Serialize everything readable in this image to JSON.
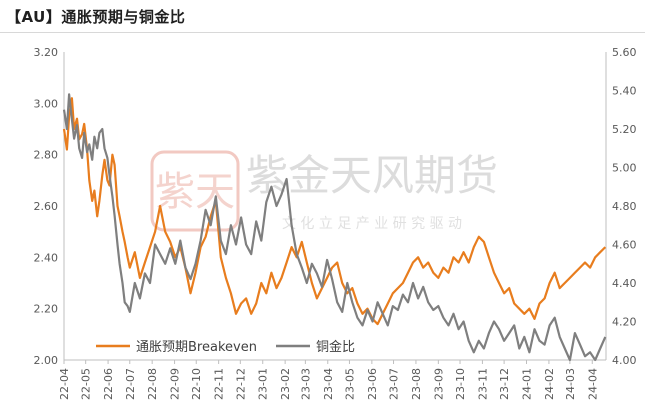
{
  "header": {
    "title": "【AU】通胀预期与铜金比"
  },
  "watermark": {
    "brand_text": "紫金天风期货",
    "slogan_text": "文 化 立 足   产 业   研 究 驱 动",
    "logo_glyphs": "紫天"
  },
  "chart_data": {
    "type": "line",
    "title": "【AU】通胀预期与铜金比",
    "grid": false,
    "legend_position": "bottom-left",
    "x_type": "date",
    "xlim": [
      "2022-04-01",
      "2024-04-20"
    ],
    "x_ticks": [
      "22-04",
      "22-05",
      "22-06",
      "22-07",
      "22-08",
      "22-09",
      "22-10",
      "22-11",
      "22-12",
      "23-01",
      "23-02",
      "23-03",
      "23-04",
      "23-05",
      "23-06",
      "23-07",
      "23-08",
      "23-09",
      "23-10",
      "23-11",
      "23-12",
      "24-01",
      "24-02",
      "24-03",
      "24-04"
    ],
    "y_left": {
      "ylim": [
        2.0,
        3.2
      ],
      "ticks": [
        "2.00",
        "2.20",
        "2.40",
        "2.60",
        "2.80",
        "3.00",
        "3.20"
      ]
    },
    "y_right": {
      "ylim": [
        4.0,
        5.6
      ],
      "ticks": [
        "4.00",
        "4.20",
        "4.40",
        "4.60",
        "4.80",
        "5.00",
        "5.20",
        "5.40",
        "5.60"
      ]
    },
    "series": [
      {
        "name": "通胀预期Breakeven",
        "axis": "left",
        "color": "#e87d1e",
        "x": [
          "2022-04-01",
          "2022-04-05",
          "2022-04-08",
          "2022-04-12",
          "2022-04-15",
          "2022-04-19",
          "2022-04-22",
          "2022-04-26",
          "2022-04-29",
          "2022-05-03",
          "2022-05-06",
          "2022-05-10",
          "2022-05-13",
          "2022-05-17",
          "2022-05-20",
          "2022-05-24",
          "2022-05-27",
          "2022-05-31",
          "2022-06-03",
          "2022-06-07",
          "2022-06-10",
          "2022-06-14",
          "2022-06-17",
          "2022-06-21",
          "2022-06-24",
          "2022-06-28",
          "2022-07-01",
          "2022-07-08",
          "2022-07-15",
          "2022-07-22",
          "2022-07-29",
          "2022-08-05",
          "2022-08-12",
          "2022-08-19",
          "2022-08-26",
          "2022-09-02",
          "2022-09-09",
          "2022-09-16",
          "2022-09-23",
          "2022-09-30",
          "2022-10-07",
          "2022-10-14",
          "2022-10-21",
          "2022-10-28",
          "2022-11-04",
          "2022-11-11",
          "2022-11-18",
          "2022-11-25",
          "2022-12-02",
          "2022-12-09",
          "2022-12-16",
          "2022-12-23",
          "2022-12-30",
          "2023-01-06",
          "2023-01-13",
          "2023-01-20",
          "2023-01-27",
          "2023-02-03",
          "2023-02-10",
          "2023-02-17",
          "2023-02-24",
          "2023-03-03",
          "2023-03-10",
          "2023-03-17",
          "2023-03-24",
          "2023-03-31",
          "2023-04-07",
          "2023-04-14",
          "2023-04-21",
          "2023-04-28",
          "2023-05-05",
          "2023-05-12",
          "2023-05-19",
          "2023-05-26",
          "2023-06-02",
          "2023-06-09",
          "2023-06-16",
          "2023-06-23",
          "2023-06-30",
          "2023-07-07",
          "2023-07-14",
          "2023-07-21",
          "2023-07-28",
          "2023-08-04",
          "2023-08-11",
          "2023-08-18",
          "2023-08-25",
          "2023-09-01",
          "2023-09-08",
          "2023-09-15",
          "2023-09-22",
          "2023-09-29",
          "2023-10-06",
          "2023-10-13",
          "2023-10-20",
          "2023-10-27",
          "2023-11-03",
          "2023-11-10",
          "2023-11-17",
          "2023-11-24",
          "2023-12-01",
          "2023-12-08",
          "2023-12-15",
          "2023-12-22",
          "2023-12-29",
          "2024-01-05",
          "2024-01-12",
          "2024-01-19",
          "2024-01-26",
          "2024-02-02",
          "2024-02-09",
          "2024-02-16",
          "2024-02-23",
          "2024-03-01",
          "2024-03-08",
          "2024-03-15",
          "2024-03-22",
          "2024-03-29",
          "2024-04-05",
          "2024-04-12",
          "2024-04-19"
        ],
        "values": [
          2.9,
          2.82,
          2.95,
          3.02,
          2.9,
          2.94,
          2.86,
          2.88,
          2.92,
          2.82,
          2.7,
          2.62,
          2.66,
          2.56,
          2.62,
          2.72,
          2.78,
          2.7,
          2.68,
          2.8,
          2.76,
          2.6,
          2.56,
          2.5,
          2.46,
          2.4,
          2.36,
          2.42,
          2.32,
          2.38,
          2.44,
          2.5,
          2.6,
          2.5,
          2.46,
          2.4,
          2.44,
          2.36,
          2.26,
          2.34,
          2.44,
          2.48,
          2.56,
          2.62,
          2.4,
          2.32,
          2.26,
          2.18,
          2.22,
          2.24,
          2.18,
          2.22,
          2.3,
          2.26,
          2.34,
          2.28,
          2.32,
          2.38,
          2.44,
          2.4,
          2.46,
          2.38,
          2.3,
          2.24,
          2.28,
          2.32,
          2.36,
          2.38,
          2.3,
          2.26,
          2.28,
          2.22,
          2.18,
          2.2,
          2.16,
          2.14,
          2.18,
          2.22,
          2.26,
          2.28,
          2.3,
          2.34,
          2.38,
          2.4,
          2.36,
          2.38,
          2.34,
          2.32,
          2.36,
          2.34,
          2.4,
          2.38,
          2.42,
          2.38,
          2.44,
          2.48,
          2.46,
          2.4,
          2.34,
          2.3,
          2.26,
          2.28,
          2.22,
          2.2,
          2.18,
          2.2,
          2.16,
          2.22,
          2.24,
          2.3,
          2.34,
          2.28,
          2.3,
          2.32,
          2.34,
          2.36,
          2.38,
          2.36,
          2.4,
          2.42,
          2.44
        ]
      },
      {
        "name": "铜金比",
        "axis": "right",
        "color": "#7f7f7f",
        "x": [
          "2022-04-01",
          "2022-04-05",
          "2022-04-08",
          "2022-04-12",
          "2022-04-15",
          "2022-04-19",
          "2022-04-22",
          "2022-04-26",
          "2022-04-29",
          "2022-05-03",
          "2022-05-06",
          "2022-05-10",
          "2022-05-13",
          "2022-05-17",
          "2022-05-20",
          "2022-05-24",
          "2022-05-27",
          "2022-05-31",
          "2022-06-03",
          "2022-06-07",
          "2022-06-10",
          "2022-06-14",
          "2022-06-17",
          "2022-06-21",
          "2022-06-24",
          "2022-06-28",
          "2022-07-01",
          "2022-07-08",
          "2022-07-15",
          "2022-07-22",
          "2022-07-29",
          "2022-08-05",
          "2022-08-12",
          "2022-08-19",
          "2022-08-26",
          "2022-09-02",
          "2022-09-09",
          "2022-09-16",
          "2022-09-23",
          "2022-09-30",
          "2022-10-07",
          "2022-10-14",
          "2022-10-21",
          "2022-10-28",
          "2022-11-04",
          "2022-11-11",
          "2022-11-18",
          "2022-11-25",
          "2022-12-02",
          "2022-12-09",
          "2022-12-16",
          "2022-12-23",
          "2022-12-30",
          "2023-01-06",
          "2023-01-13",
          "2023-01-20",
          "2023-01-27",
          "2023-02-03",
          "2023-02-10",
          "2023-02-17",
          "2023-02-24",
          "2023-03-03",
          "2023-03-10",
          "2023-03-17",
          "2023-03-24",
          "2023-03-31",
          "2023-04-07",
          "2023-04-14",
          "2023-04-21",
          "2023-04-28",
          "2023-05-05",
          "2023-05-12",
          "2023-05-19",
          "2023-05-26",
          "2023-06-02",
          "2023-06-09",
          "2023-06-16",
          "2023-06-23",
          "2023-06-30",
          "2023-07-07",
          "2023-07-14",
          "2023-07-21",
          "2023-07-28",
          "2023-08-04",
          "2023-08-11",
          "2023-08-18",
          "2023-08-25",
          "2023-09-01",
          "2023-09-08",
          "2023-09-15",
          "2023-09-22",
          "2023-09-29",
          "2023-10-06",
          "2023-10-13",
          "2023-10-20",
          "2023-10-27",
          "2023-11-03",
          "2023-11-10",
          "2023-11-17",
          "2023-11-24",
          "2023-12-01",
          "2023-12-08",
          "2023-12-15",
          "2023-12-22",
          "2023-12-29",
          "2024-01-05",
          "2024-01-12",
          "2024-01-19",
          "2024-01-26",
          "2024-02-02",
          "2024-02-09",
          "2024-02-16",
          "2024-02-23",
          "2024-03-01",
          "2024-03-08",
          "2024-03-15",
          "2024-03-22",
          "2024-03-29",
          "2024-04-05",
          "2024-04-12",
          "2024-04-19"
        ],
        "values": [
          5.3,
          5.2,
          5.38,
          5.25,
          5.15,
          5.22,
          5.1,
          5.05,
          5.18,
          5.08,
          5.12,
          5.04,
          5.16,
          5.1,
          5.18,
          5.2,
          5.1,
          5.05,
          4.96,
          4.85,
          4.75,
          4.6,
          4.5,
          4.4,
          4.3,
          4.28,
          4.25,
          4.4,
          4.32,
          4.45,
          4.4,
          4.6,
          4.55,
          4.5,
          4.58,
          4.5,
          4.62,
          4.48,
          4.42,
          4.5,
          4.62,
          4.78,
          4.7,
          4.85,
          4.62,
          4.55,
          4.7,
          4.6,
          4.74,
          4.6,
          4.55,
          4.72,
          4.62,
          4.82,
          4.9,
          4.8,
          4.86,
          4.94,
          4.7,
          4.55,
          4.48,
          4.4,
          4.5,
          4.45,
          4.38,
          4.52,
          4.42,
          4.3,
          4.25,
          4.4,
          4.3,
          4.22,
          4.18,
          4.26,
          4.2,
          4.3,
          4.24,
          4.18,
          4.28,
          4.26,
          4.34,
          4.3,
          4.4,
          4.32,
          4.38,
          4.3,
          4.26,
          4.28,
          4.22,
          4.18,
          4.24,
          4.16,
          4.2,
          4.1,
          4.04,
          4.1,
          4.06,
          4.14,
          4.2,
          4.16,
          4.1,
          4.14,
          4.18,
          4.06,
          4.12,
          4.04,
          4.16,
          4.1,
          4.08,
          4.18,
          4.22,
          4.12,
          4.06,
          4.0,
          4.14,
          4.08,
          4.02,
          4.04,
          4.0,
          4.06,
          4.12
        ]
      }
    ]
  }
}
